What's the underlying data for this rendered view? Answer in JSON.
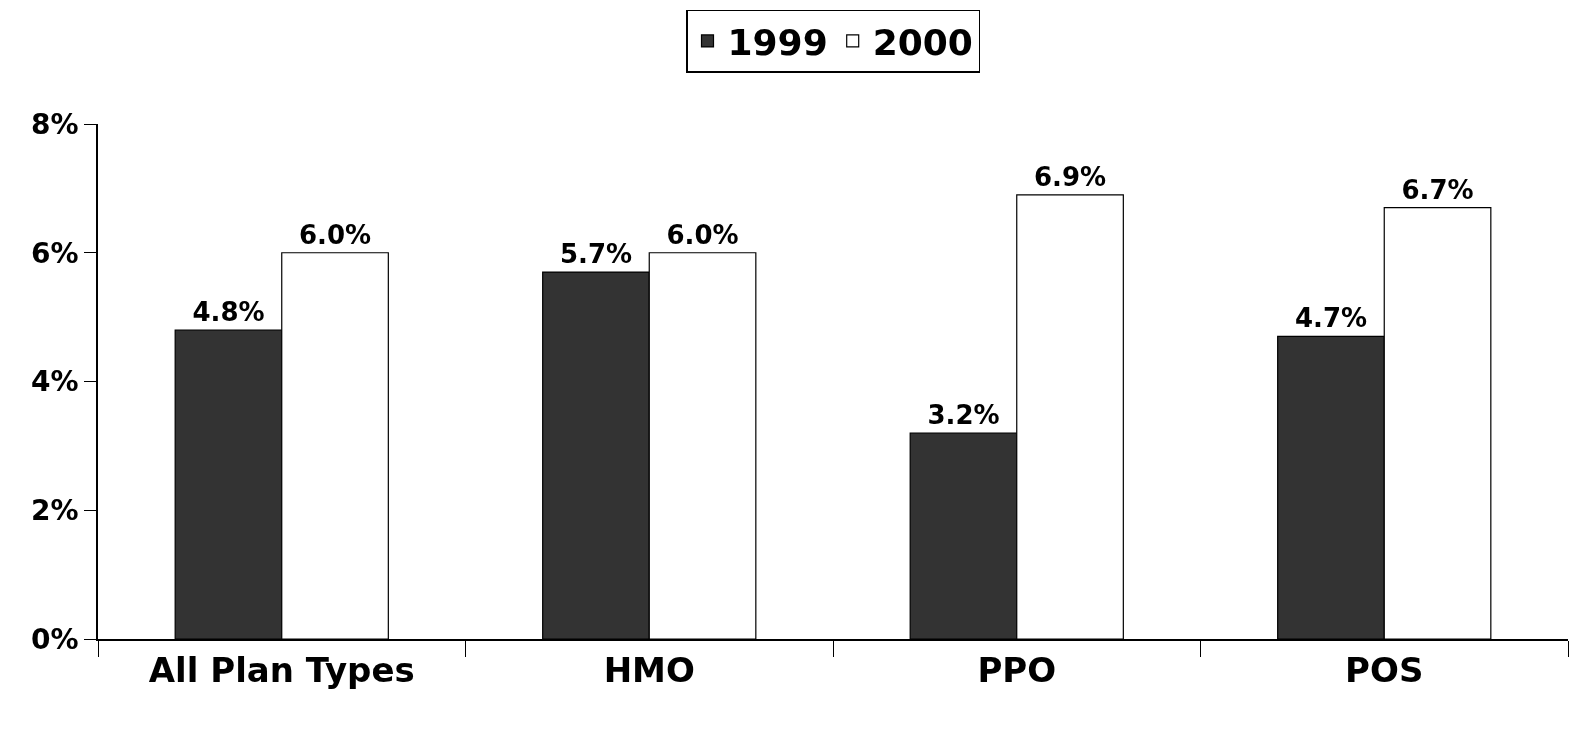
{
  "chart_data": {
    "type": "bar",
    "categories": [
      "All Plan Types",
      "HMO",
      "PPO",
      "POS"
    ],
    "series": [
      {
        "name": "1999",
        "color": "#333333",
        "values": [
          4.8,
          5.7,
          3.2,
          4.7
        ],
        "value_labels": [
          "4.8%",
          "5.7%",
          "3.2%",
          "4.7%"
        ]
      },
      {
        "name": "2000",
        "color": "#ffffff",
        "values": [
          6.0,
          6.0,
          6.9,
          6.7
        ],
        "value_labels": [
          "6.0%",
          "6.0%",
          "6.9%",
          "6.7%"
        ]
      }
    ],
    "ylim": [
      0,
      8
    ],
    "yticks": [
      {
        "value": 0,
        "label": "0%"
      },
      {
        "value": 2,
        "label": "2%"
      },
      {
        "value": 4,
        "label": "4%"
      },
      {
        "value": 6,
        "label": "6%"
      },
      {
        "value": 8,
        "label": "8%"
      }
    ],
    "grid": false,
    "legend": "top"
  }
}
